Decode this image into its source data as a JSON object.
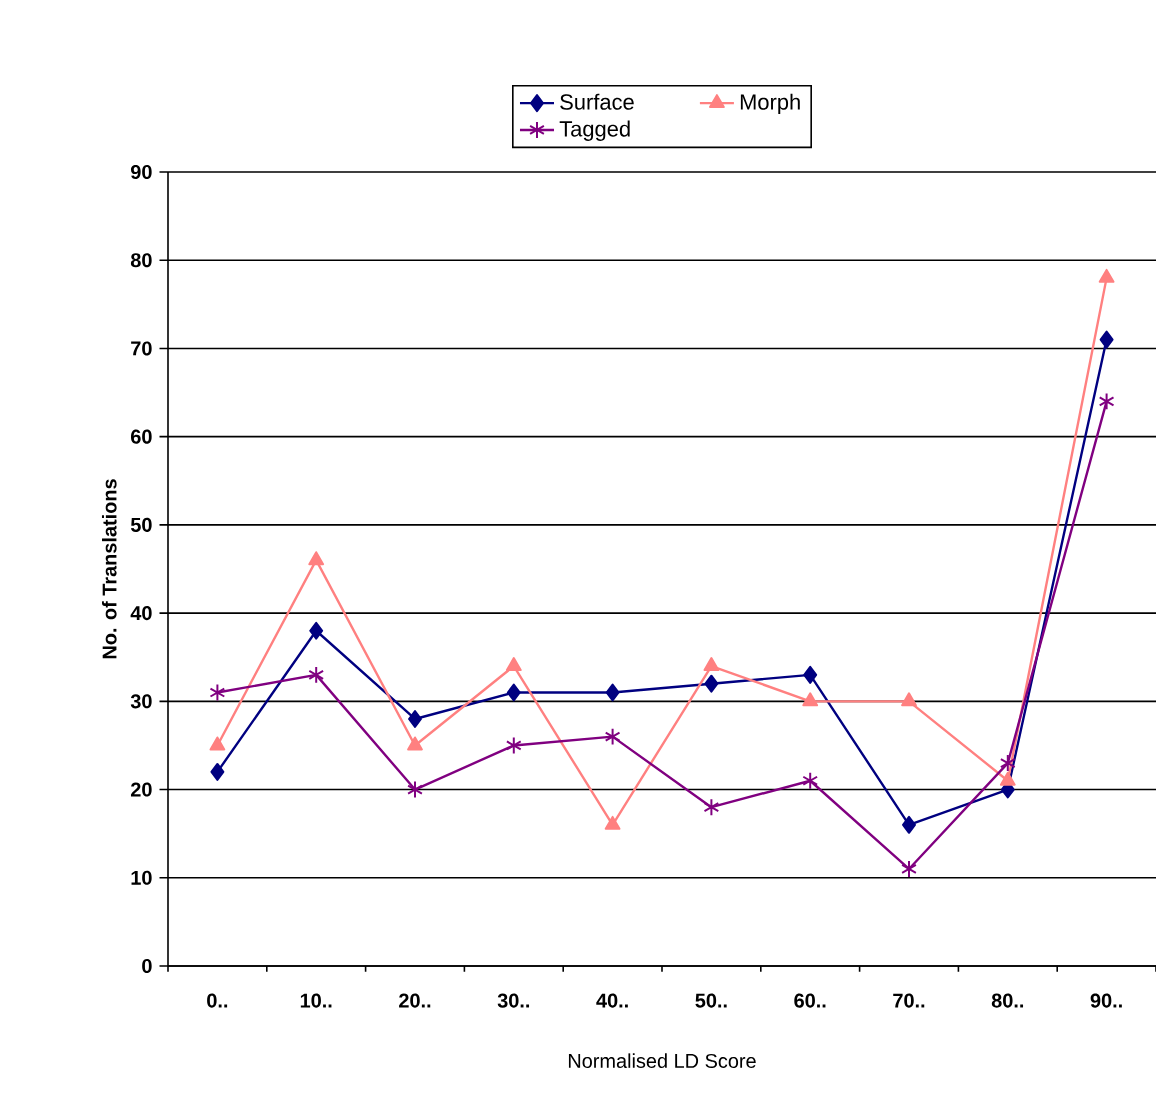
{
  "chart_data": {
    "type": "line",
    "xlabel": "Normalised LD Score",
    "ylabel": "No. of Translations",
    "categories": [
      "0..",
      "10..",
      "20..",
      "30..",
      "40..",
      "50..",
      "60..",
      "70..",
      "80..",
      "90.."
    ],
    "series": [
      {
        "name": "Surface",
        "color": "#000080",
        "marker": "diamond",
        "values": [
          22,
          38,
          28,
          31,
          31,
          32,
          33,
          16,
          20,
          71
        ]
      },
      {
        "name": "Morph",
        "color": "#ff8080",
        "marker": "triangle",
        "values": [
          25,
          46,
          25,
          34,
          16,
          34,
          30,
          30,
          21,
          78
        ]
      },
      {
        "name": "Tagged",
        "color": "#800080",
        "marker": "cross",
        "values": [
          31,
          33,
          20,
          25,
          26,
          18,
          21,
          11,
          23,
          64
        ]
      }
    ],
    "ylim": [
      0,
      90
    ],
    "yticks": [
      0,
      10,
      20,
      30,
      40,
      50,
      60,
      70,
      80,
      90
    ],
    "grid": "y",
    "legend": "top"
  }
}
